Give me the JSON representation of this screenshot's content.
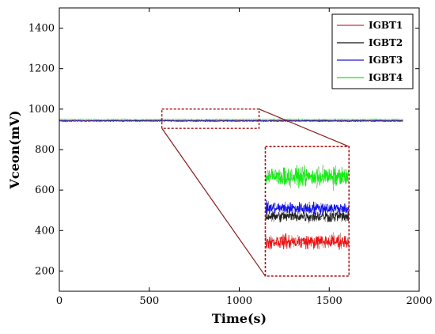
{
  "chart_data": {
    "type": "line",
    "title": "",
    "xlabel": "Time(s)",
    "ylabel": "Vceon(mV)",
    "xlim": [
      0,
      2000
    ],
    "ylim": [
      100,
      1500
    ],
    "x_ticks": [
      0,
      500,
      1000,
      1500,
      2000
    ],
    "y_ticks": [
      200,
      400,
      600,
      800,
      1000,
      1200,
      1400
    ],
    "grid": false,
    "legend_position": "top-right",
    "x_range": [
      0,
      1910
    ],
    "series": [
      {
        "name": "IGBT1",
        "color": "#c0392b",
        "mean": 944,
        "noise": 4
      },
      {
        "name": "IGBT2",
        "color": "#111111",
        "mean": 941,
        "noise": 4
      },
      {
        "name": "IGBT3",
        "color": "#1a1acc",
        "mean": 942,
        "noise": 4
      },
      {
        "name": "IGBT4",
        "color": "#22dd22",
        "mean": 949,
        "noise": 4
      }
    ],
    "zoom_region": {
      "x": [
        570,
        1110
      ],
      "y": [
        905,
        1000
      ]
    },
    "inset": {
      "x": [
        1145,
        1610
      ],
      "y": [
        175,
        815
      ],
      "bands": [
        {
          "series": "IGBT1",
          "color": "#ee1111",
          "dark": "#7a1a1a",
          "center": 345,
          "spread": 50
        },
        {
          "series": "IGBT2",
          "color": "#222222",
          "dark": "#000000",
          "center": 470,
          "spread": 40
        },
        {
          "series": "IGBT3",
          "color": "#1010ee",
          "dark": "#000066",
          "center": 510,
          "spread": 45
        },
        {
          "series": "IGBT4",
          "color": "#11ee11",
          "dark": "#0a6a0a",
          "center": 665,
          "spread": 65
        }
      ]
    }
  }
}
